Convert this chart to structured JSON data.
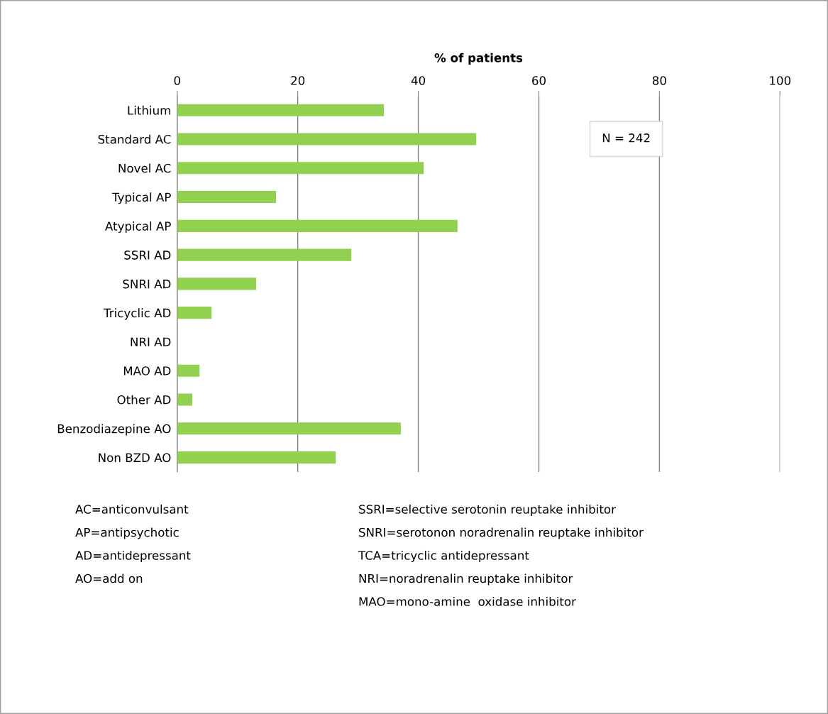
{
  "chart_data": {
    "type": "bar",
    "orientation": "horizontal",
    "xlabel": "% of patients",
    "categories": [
      "Lithium",
      "Standard AC",
      "Novel AC",
      "Typical AP",
      "Atypical AP",
      "SSRI AD",
      "SNRI AD",
      "Tricyclic AD",
      "NRI AD",
      "MAO AD",
      "Other AD",
      "Benzodiazepine AO",
      "Non BZD AO"
    ],
    "values": [
      34.3,
      49.6,
      40.9,
      16.4,
      46.5,
      28.9,
      13.1,
      5.7,
      0,
      3.7,
      2.5,
      37.1,
      26.3
    ],
    "color": "#92d050",
    "xlim": [
      0,
      100
    ],
    "xticks": [
      0,
      20,
      40,
      60,
      80,
      100
    ],
    "grid": "x",
    "annotations": [
      "N = 242",
      "AC=anticonvulsant",
      "AP=antipsychotic",
      "AD=antidepressant",
      "AO=add on",
      "SSRI=selective serotonin reuptake inhibitor",
      "SNRI=serotonon noradrenalin reuptake inhibitor",
      "TCA=tricyclic antidepressant",
      "NRI=noradrenalin reuptake inhibitor",
      "MAO=mono-amine  oxidase inhibitor"
    ]
  }
}
